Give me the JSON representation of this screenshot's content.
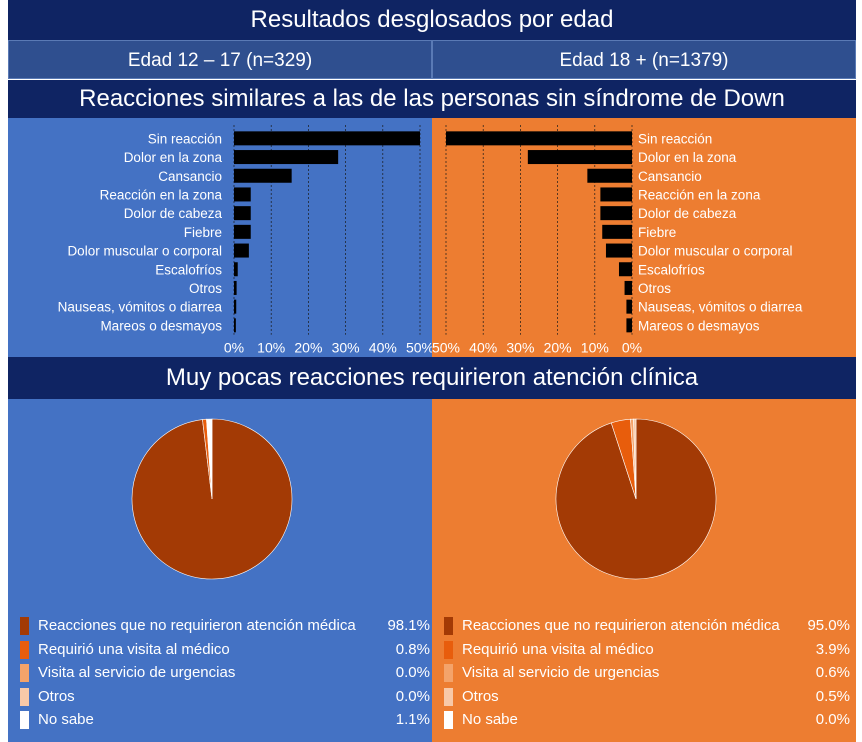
{
  "title": "Resultados desglosados por edad",
  "groups": {
    "left": "Edad 12 – 17 (n=329)",
    "right": "Edad 18 + (n=1379)"
  },
  "section1_title": "Reacciones similares a las de las personas sin síndrome de Down",
  "section2_title": "Muy pocas reacciones requirieron atención clínica",
  "colors": {
    "navy": "#0f2463",
    "blue_panel": "#4472c4",
    "orange_panel": "#ed7d31",
    "bar": "#000000"
  },
  "chart_data": [
    {
      "type": "bar",
      "orientation": "horizontal",
      "categories": [
        "Sin reacción",
        "Dolor en la zona",
        "Cansancio",
        "Reacción en la zona",
        "Dolor de cabeza",
        "Fiebre",
        "Dolor muscular o corporal",
        "Escalofríos",
        "Otros",
        "Nauseas, vómitos o diarrea",
        "Mareos o desmayos"
      ],
      "values": [
        50,
        28,
        15.5,
        4.5,
        4.5,
        4.5,
        4,
        1,
        0.7,
        0.6,
        0.5
      ],
      "xticks": [
        "0%",
        "10%",
        "20%",
        "30%",
        "40%",
        "50%"
      ],
      "xlim": [
        0,
        50
      ],
      "grid": true
    },
    {
      "type": "bar",
      "orientation": "horizontal",
      "reversed": true,
      "categories": [
        "Sin reacción",
        "Dolor en la zona",
        "Cansancio",
        "Reacción en la zona",
        "Dolor de cabeza",
        "Fiebre",
        "Dolor muscular o corporal",
        "Escalofríos",
        "Otros",
        "Nauseas, vómitos o diarrea",
        "Mareos o desmayos"
      ],
      "values": [
        50,
        28,
        12,
        8.5,
        8.5,
        8,
        7,
        3.5,
        2,
        1.5,
        1.5
      ],
      "xticks": [
        "50%",
        "40%",
        "30%",
        "20%",
        "10%",
        "0%"
      ],
      "xlim": [
        0,
        50
      ],
      "grid": true
    },
    {
      "type": "pie",
      "labels": [
        "Reacciones que no requirieron atención médica",
        "Requirió una visita al médico",
        "Visita al servicio de urgencias",
        "Otros",
        "No sabe"
      ],
      "display_values": [
        "98.1%",
        "0.8%",
        "0.0%",
        "0.0%",
        "1.1%"
      ],
      "values": [
        98.1,
        0.8,
        0.0,
        0.0,
        1.1
      ],
      "colors": [
        "#a33a05",
        "#e85d0c",
        "#f4a36a",
        "#f8c9a8",
        "#ffffff"
      ]
    },
    {
      "type": "pie",
      "labels": [
        "Reacciones que no requirieron atención médica",
        "Requirió una visita al médico",
        "Visita al servicio de urgencias",
        "Otros",
        "No sabe"
      ],
      "display_values": [
        "95.0%",
        "3.9%",
        "0.6%",
        "0.5%",
        "0.0%"
      ],
      "values": [
        95.0,
        3.9,
        0.6,
        0.5,
        0.0
      ],
      "colors": [
        "#a33a05",
        "#e85d0c",
        "#f4a36a",
        "#f8c9a8",
        "#ffffff"
      ]
    }
  ]
}
